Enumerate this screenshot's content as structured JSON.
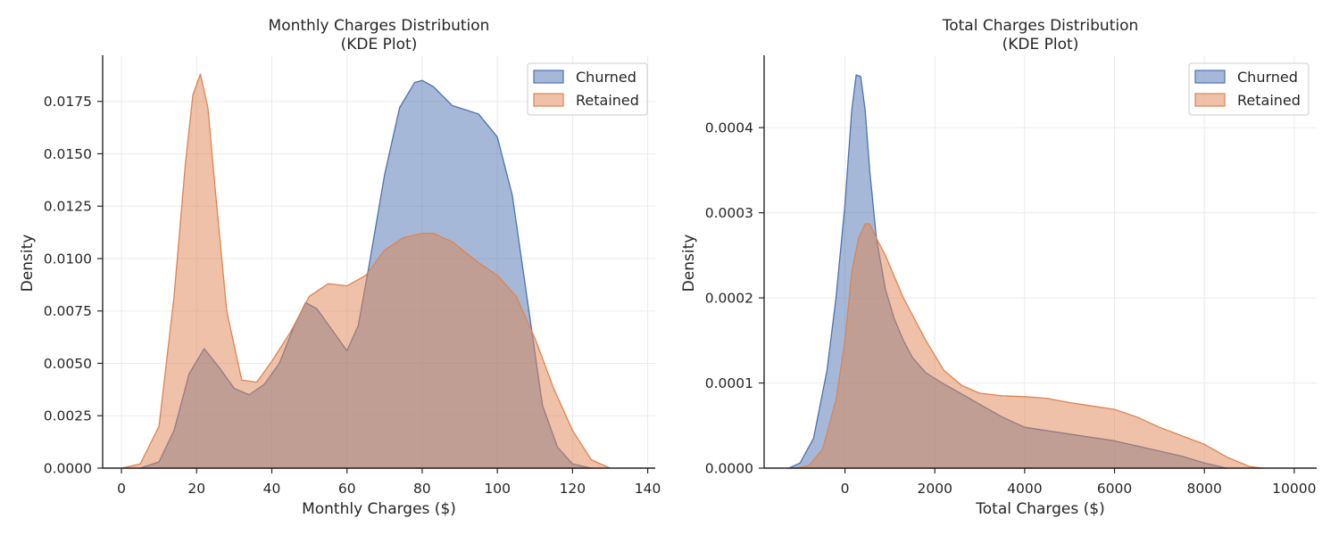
{
  "chart_data": [
    {
      "type": "area",
      "title_line1": "Monthly Charges Distribution",
      "title_line2": "(KDE Plot)",
      "xlabel": "Monthly Charges ($)",
      "ylabel": "Density",
      "xlim": [
        -5,
        142
      ],
      "ylim": [
        0,
        0.0197
      ],
      "xticks": [
        0,
        20,
        40,
        60,
        80,
        100,
        120,
        140
      ],
      "xtick_labels": [
        "0",
        "20",
        "40",
        "60",
        "80",
        "100",
        "120",
        "140"
      ],
      "yticks": [
        0,
        0.0025,
        0.005,
        0.0075,
        0.01,
        0.0125,
        0.015,
        0.0175
      ],
      "ytick_labels": [
        "0.0000",
        "0.0025",
        "0.0050",
        "0.0075",
        "0.0100",
        "0.0125",
        "0.0150",
        "0.0175"
      ],
      "grid": true,
      "legend_position": "top-right",
      "series": [
        {
          "name": "Churned",
          "color": "#4c72b0",
          "x": [
            5,
            10,
            14,
            18,
            22,
            26,
            30,
            34,
            38,
            42,
            46,
            49,
            52,
            56,
            60,
            63,
            66,
            70,
            74,
            78,
            80,
            83,
            88,
            95,
            100,
            104,
            108,
            112,
            116,
            120,
            125
          ],
          "y": [
            0.0,
            0.0003,
            0.0018,
            0.0045,
            0.0057,
            0.0048,
            0.0038,
            0.0035,
            0.004,
            0.005,
            0.0068,
            0.0079,
            0.0076,
            0.0066,
            0.0056,
            0.0068,
            0.0098,
            0.014,
            0.0172,
            0.0184,
            0.0185,
            0.0182,
            0.0173,
            0.0169,
            0.0158,
            0.013,
            0.008,
            0.003,
            0.001,
            0.0002,
            0.0
          ]
        },
        {
          "name": "Retained",
          "color": "#dd8452",
          "x": [
            0,
            5,
            10,
            14,
            17,
            19,
            21,
            23,
            25,
            28,
            32,
            36,
            40,
            45,
            50,
            55,
            60,
            65,
            70,
            75,
            80,
            83,
            88,
            95,
            100,
            105,
            110,
            115,
            120,
            125,
            130
          ],
          "y": [
            0.0,
            0.0002,
            0.002,
            0.0082,
            0.0145,
            0.0178,
            0.0188,
            0.0172,
            0.0132,
            0.0075,
            0.0042,
            0.0041,
            0.0051,
            0.0065,
            0.0082,
            0.0088,
            0.0087,
            0.0092,
            0.0104,
            0.011,
            0.0112,
            0.0112,
            0.0108,
            0.0098,
            0.0092,
            0.0082,
            0.0062,
            0.0038,
            0.0018,
            0.0004,
            0.0
          ]
        }
      ]
    },
    {
      "type": "area",
      "title_line1": "Total Charges Distribution",
      "title_line2": "(KDE Plot)",
      "xlabel": "Total Charges ($)",
      "ylabel": "Density",
      "xlim": [
        -1800,
        10500
      ],
      "ylim": [
        0,
        0.000485
      ],
      "xticks": [
        0,
        2000,
        4000,
        6000,
        8000,
        10000
      ],
      "xtick_labels": [
        "0",
        "2000",
        "4000",
        "6000",
        "8000",
        "10000"
      ],
      "yticks": [
        0,
        0.0001,
        0.0002,
        0.0003,
        0.0004
      ],
      "ytick_labels": [
        "0.0000",
        "0.0001",
        "0.0002",
        "0.0003",
        "0.0004"
      ],
      "grid": true,
      "legend_position": "top-right",
      "series": [
        {
          "name": "Churned",
          "color": "#4c72b0",
          "x": [
            -1250,
            -1000,
            -700,
            -400,
            -200,
            0,
            150,
            250,
            350,
            450,
            550,
            700,
            900,
            1100,
            1300,
            1500,
            1800,
            2100,
            2500,
            3000,
            3500,
            4000,
            5000,
            6000,
            7000,
            7500,
            8000,
            8500
          ],
          "y": [
            0.0,
            6e-06,
            3.5e-05,
            0.000115,
            0.0002,
            0.00031,
            0.00042,
            0.000462,
            0.00046,
            0.00042,
            0.00035,
            0.00027,
            0.00021,
            0.000175,
            0.00015,
            0.00013,
            0.000112,
            0.000102,
            9e-05,
            7.5e-05,
            6e-05,
            4.8e-05,
            4e-05,
            3.2e-05,
            2e-05,
            1.4e-05,
            6e-06,
            0.0
          ]
        },
        {
          "name": "Retained",
          "color": "#dd8452",
          "x": [
            -1100,
            -800,
            -500,
            -200,
            0,
            150,
            300,
            450,
            550,
            700,
            900,
            1100,
            1300,
            1500,
            1800,
            2200,
            2600,
            3000,
            3500,
            4000,
            4500,
            5000,
            5500,
            6000,
            6500,
            7000,
            7500,
            8000,
            8500,
            9000,
            9300
          ],
          "y": [
            0.0,
            3e-06,
            2.2e-05,
            8e-05,
            0.00015,
            0.00023,
            0.00027,
            0.000287,
            0.000287,
            0.00027,
            0.00025,
            0.000225,
            0.0002,
            0.00018,
            0.00015,
            0.000115,
            9.7e-05,
            8.8e-05,
            8.5e-05,
            8.4e-05,
            8.2e-05,
            7.7e-05,
            7.3e-05,
            6.9e-05,
            6e-05,
            4.8e-05,
            3.8e-05,
            2.8e-05,
            1.3e-05,
            2e-06,
            0.0
          ]
        }
      ]
    }
  ]
}
